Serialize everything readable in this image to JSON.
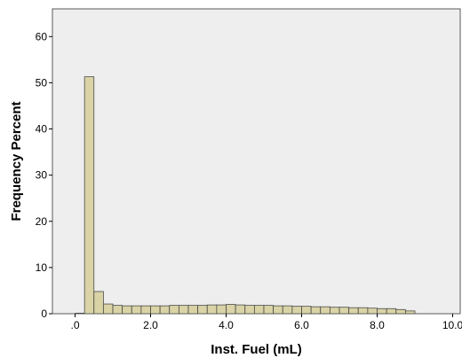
{
  "chart_data": {
    "type": "bar",
    "title": "",
    "xlabel": "Inst. Fuel (mL)",
    "ylabel": "Frequency Percent",
    "xlim": [
      -0.6,
      10.2
    ],
    "ylim": [
      0,
      66
    ],
    "x_ticks": [
      0,
      2,
      4,
      6,
      8,
      10
    ],
    "x_tick_labels": [
      ".0",
      "2.0",
      "4.0",
      "6.0",
      "8.0",
      "10.0"
    ],
    "y_ticks": [
      0,
      10,
      20,
      30,
      40,
      50,
      60
    ],
    "y_tick_labels": [
      "0",
      "10",
      "20",
      "30",
      "40",
      "50",
      "60"
    ],
    "bin_width": 0.25,
    "bin_starts": [
      0.25,
      0.5,
      0.75,
      1.0,
      1.25,
      1.5,
      1.75,
      2.0,
      2.25,
      2.5,
      2.75,
      3.0,
      3.25,
      3.5,
      3.75,
      4.0,
      4.25,
      4.5,
      4.75,
      5.0,
      5.25,
      5.5,
      5.75,
      6.0,
      6.25,
      6.5,
      6.75,
      7.0,
      7.25,
      7.5,
      7.75,
      8.0,
      8.25,
      8.5,
      8.75
    ],
    "values": [
      51.3,
      4.8,
      2.1,
      1.8,
      1.7,
      1.7,
      1.7,
      1.7,
      1.7,
      1.8,
      1.8,
      1.8,
      1.8,
      1.9,
      1.9,
      2.0,
      1.9,
      1.8,
      1.8,
      1.8,
      1.7,
      1.7,
      1.6,
      1.6,
      1.5,
      1.5,
      1.4,
      1.4,
      1.3,
      1.3,
      1.2,
      1.1,
      1.1,
      0.9,
      0.6
    ],
    "grid": false,
    "colors": {
      "bar_fill": "#d9d3a6",
      "bar_stroke": "#4a4a4a",
      "plot_background": "#eeeeee",
      "frame": "#5a5a5a"
    }
  }
}
